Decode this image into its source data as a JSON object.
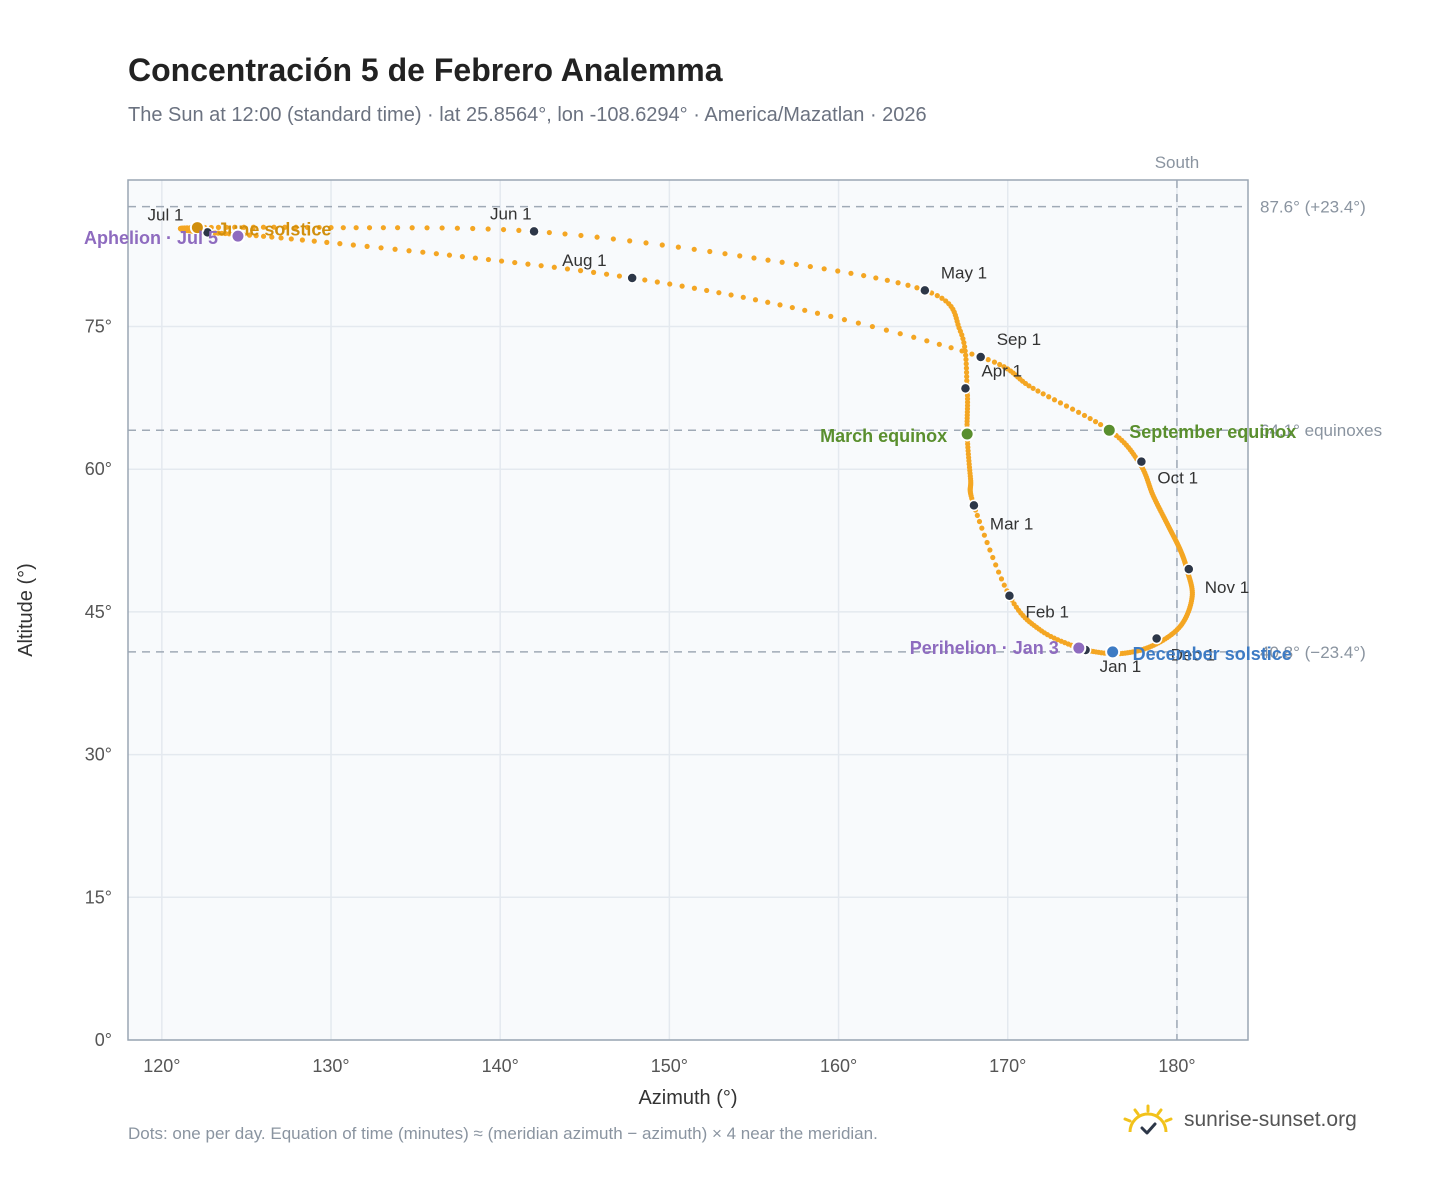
{
  "title": "Concentración 5 de Febrero Analemma",
  "subtitle": "The Sun at 12:00 (standard time) · lat 25.8564°, lon -108.6294° · America/Mazatlan · 2026",
  "footnote": "Dots: one per day. Equation of time (minutes) ≈ (meridian azimuth − azimuth) × 4 near the meridian.",
  "brand": {
    "name": "sunrise-sunset.org",
    "icon": "sun-logo-icon"
  },
  "colors": {
    "curve": "#f4a623",
    "month_dot": "#2d3748",
    "equinox": "#5a8f2e",
    "solstice_june": "#d18f0e",
    "solstice_december": "#3d7bc4",
    "apsis": "#8e6bbf",
    "plot_bg": "#f8fafc",
    "grid": "#e4e9ef",
    "ref_line": "#a0aab6"
  },
  "chart_data": {
    "type": "scatter",
    "title": "Concentración 5 de Febrero Analemma",
    "xlabel": "Azimuth (°)",
    "ylabel": "Altitude (°)",
    "xlim": [
      118,
      184.2
    ],
    "ylim": [
      0,
      90.4
    ],
    "x_ticks": [
      120,
      130,
      140,
      150,
      160,
      170,
      180
    ],
    "x_tick_labels": [
      "120°",
      "130°",
      "140°",
      "150°",
      "160°",
      "170°",
      "180°"
    ],
    "y_ticks": [
      0,
      15,
      30,
      45,
      60,
      75
    ],
    "y_tick_labels": [
      "0°",
      "15°",
      "30°",
      "45°",
      "60°",
      "75°"
    ],
    "grid": true,
    "meridian": {
      "azimuth": 180,
      "label": "South"
    },
    "reference_lines": [
      {
        "altitude": 87.6,
        "label": "87.6° (+23.4°)"
      },
      {
        "altitude": 64.1,
        "label": "64.1° equinoxes"
      },
      {
        "altitude": 40.8,
        "label": "40.8° (−23.4°)"
      }
    ],
    "series": [
      {
        "points_per": "day",
        "keypoints": [
          [
            174.5,
            41.0
          ],
          [
            176.5,
            40.6
          ],
          [
            178.5,
            41.4
          ],
          [
            180.2,
            43.5
          ],
          [
            180.9,
            46.6
          ],
          [
            180.6,
            49.4
          ],
          [
            180.2,
            51.5
          ],
          [
            179.5,
            54.0
          ],
          [
            178.6,
            57.2
          ],
          [
            177.8,
            60.6
          ],
          [
            176.0,
            64.1
          ],
          [
            171.5,
            68.5
          ],
          [
            168.4,
            71.8
          ],
          [
            158.0,
            76.7
          ],
          [
            147.8,
            80.1
          ],
          [
            137.0,
            82.5
          ],
          [
            126.5,
            84.4
          ],
          [
            122.6,
            84.9
          ],
          [
            121.2,
            85.2
          ],
          [
            122.2,
            85.4
          ],
          [
            130.0,
            85.4
          ],
          [
            142.0,
            85.0
          ],
          [
            155.0,
            82.2
          ],
          [
            165.1,
            78.8
          ],
          [
            167.2,
            74.5
          ],
          [
            167.6,
            68.5
          ],
          [
            167.6,
            63.7
          ],
          [
            167.8,
            59.0
          ],
          [
            168.0,
            56.2
          ],
          [
            170.1,
            46.7
          ],
          [
            172.0,
            43.0
          ],
          [
            174.5,
            41.0
          ]
        ]
      }
    ],
    "months": [
      {
        "label": "Jan 1",
        "x": 174.6,
        "y": 41.0
      },
      {
        "label": "Feb 1",
        "x": 170.1,
        "y": 46.7
      },
      {
        "label": "Mar 1",
        "x": 168.0,
        "y": 56.2
      },
      {
        "label": "Apr 1",
        "x": 167.5,
        "y": 68.5
      },
      {
        "label": "May 1",
        "x": 165.1,
        "y": 78.8
      },
      {
        "label": "Jun 1",
        "x": 142.0,
        "y": 85.0
      },
      {
        "label": "Jul 1",
        "x": 122.7,
        "y": 84.9
      },
      {
        "label": "Aug 1",
        "x": 147.8,
        "y": 80.1
      },
      {
        "label": "Sep 1",
        "x": 168.4,
        "y": 71.8
      },
      {
        "label": "Oct 1",
        "x": 177.9,
        "y": 60.8
      },
      {
        "label": "Nov 1",
        "x": 180.7,
        "y": 49.5
      },
      {
        "label": "Dec 1",
        "x": 178.8,
        "y": 42.2
      }
    ],
    "events": [
      {
        "label": "March equinox",
        "x": 167.6,
        "y": 63.7,
        "color": "#5a8f2e"
      },
      {
        "label": "September equinox",
        "x": 176.0,
        "y": 64.1,
        "color": "#5a8f2e"
      },
      {
        "label": "June solstice",
        "x": 122.1,
        "y": 85.4,
        "color": "#d18f0e"
      },
      {
        "label": "December solstice",
        "x": 176.2,
        "y": 40.8,
        "color": "#3d7bc4"
      },
      {
        "label": "Perihelion · Jan 3",
        "x": 174.2,
        "y": 41.2,
        "color": "#8e6bbf"
      },
      {
        "label": "Aphelion · Jul 5",
        "x": 124.5,
        "y": 84.5,
        "color": "#8e6bbf"
      }
    ]
  }
}
